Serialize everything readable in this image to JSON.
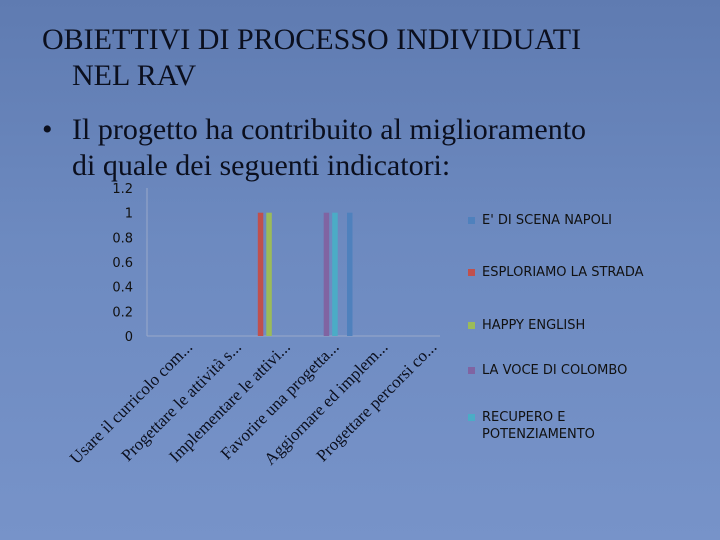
{
  "slide": {
    "title_line1": "OBIETTIVI DI PROCESSO INDIVIDUATI",
    "title_line2": "NEL RAV",
    "bullet_symbol": "•",
    "bullet_line1": "Il progetto ha contribuito al miglioramento",
    "bullet_line2": "di quale dei seguenti indicatori:"
  },
  "chart_data": {
    "type": "bar",
    "title": "",
    "xlabel": "",
    "ylabel": "",
    "ylim": [
      0,
      1.2
    ],
    "yticks": [
      "0",
      "0.2",
      "0.4",
      "0.6",
      "0.8",
      "1",
      "1.2"
    ],
    "grid": false,
    "legend_position": "right",
    "categories": [
      "Usare il curricolo com...",
      "Progettare le attività s...",
      "Implementare le attivi...",
      "Favorire una progetta...",
      "Aggiornare ed implem...",
      "Progettare percorsi co..."
    ],
    "series": [
      {
        "name": "E' DI SCENA NAPOLI",
        "color": "#4f81bd",
        "values": [
          0,
          0,
          0,
          0,
          1,
          0
        ]
      },
      {
        "name": "ESPLORIAMO LA STRADA",
        "color": "#c0504d",
        "values": [
          0,
          0,
          1,
          0,
          0,
          0
        ]
      },
      {
        "name": "HAPPY ENGLISH",
        "color": "#9bbb59",
        "values": [
          0,
          0,
          1,
          0,
          0,
          0
        ]
      },
      {
        "name": "LA VOCE DI COLOMBO",
        "color": "#8064a2",
        "values": [
          0,
          0,
          0,
          1,
          0,
          0
        ]
      },
      {
        "name": "RECUPERO E POTENZIAMENTO",
        "color": "#4bacc6",
        "values": [
          0,
          0,
          0,
          1,
          0,
          0
        ]
      }
    ]
  }
}
